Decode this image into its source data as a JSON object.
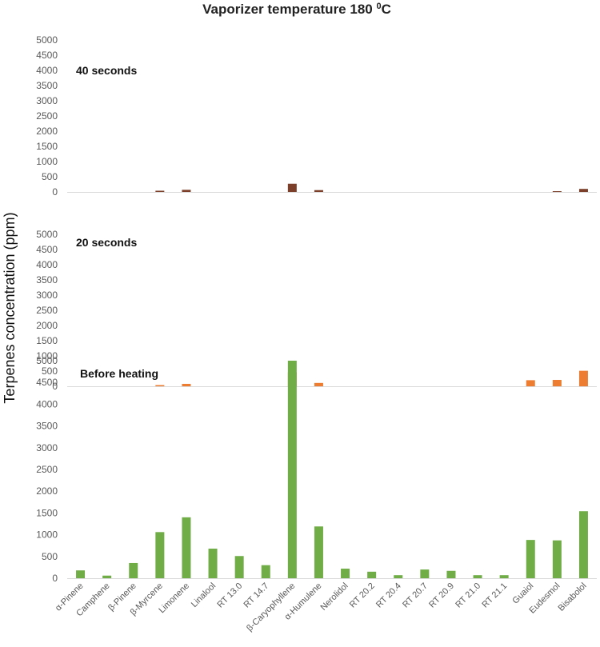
{
  "chart_data": {
    "type": "bar",
    "title": "Vaporizer temperature 180",
    "title_superscript": "0",
    "title_unit": "C",
    "ylabel": "Terpenes  concentration (ppm)",
    "xlabel": "",
    "ylim": [
      0,
      5000
    ],
    "yticks": [
      0,
      500,
      1000,
      1500,
      2000,
      2500,
      3000,
      3500,
      4000,
      4500,
      5000
    ],
    "grid": false,
    "categories": [
      "α-Pinene",
      "Camphene",
      "β-Pinene",
      "β-Myrcene",
      "Limonene",
      "Linalool",
      "RT 13.0",
      "RT 14.7",
      "β-Caryophyllene",
      "α-Humulene",
      "Nerolidol",
      "RT 20.2",
      "RT 20.4",
      "RT 20.7",
      "RT 20.9",
      "RT 21.0",
      "RT 21.1",
      "Guaiol",
      "Eudesmol",
      "Bisabolol"
    ],
    "panels": [
      {
        "label": "40 seconds",
        "color": "#7b3f2a",
        "values": [
          0,
          0,
          0,
          40,
          70,
          0,
          0,
          0,
          270,
          60,
          0,
          0,
          0,
          0,
          0,
          0,
          0,
          0,
          25,
          100
        ]
      },
      {
        "label": "20 seconds",
        "color": "#ed7d31",
        "values": [
          0,
          0,
          0,
          40,
          80,
          0,
          0,
          0,
          460,
          110,
          0,
          0,
          0,
          0,
          0,
          0,
          0,
          200,
          210,
          510
        ]
      },
      {
        "label": "Before heating",
        "color": "#70ad47",
        "values": [
          180,
          60,
          350,
          1060,
          1400,
          680,
          510,
          300,
          5000,
          1190,
          220,
          150,
          70,
          200,
          170,
          70,
          70,
          880,
          870,
          1540
        ]
      }
    ]
  }
}
